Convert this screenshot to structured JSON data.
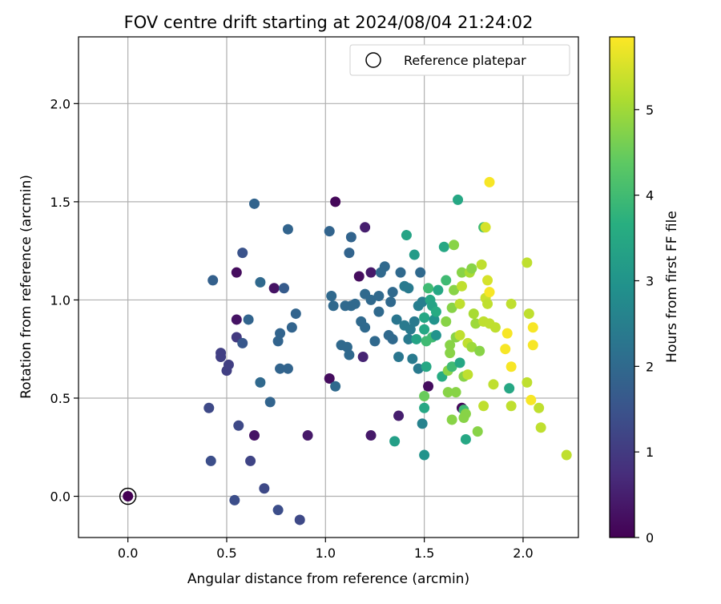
{
  "chart_data": {
    "type": "scatter",
    "title": "FOV centre drift starting at 2024/08/04 21:24:02",
    "xlabel": "Angular distance from reference (arcmin)",
    "ylabel": "Rotation from reference (arcmin)",
    "xlim": [
      -0.25,
      2.28
    ],
    "ylim": [
      -0.21,
      2.34
    ],
    "x_ticks": [
      "0.0",
      "0.5",
      "1.0",
      "1.5",
      "2.0"
    ],
    "y_ticks": [
      "0.0",
      "0.5",
      "1.0",
      "1.5",
      "2.0"
    ],
    "grid": true,
    "legend": {
      "placement": "top-right",
      "entries": [
        "Reference platepar"
      ]
    },
    "reference_point": {
      "x": 0.0,
      "y": 0.0
    },
    "colorbar": {
      "label": "Hours from first FF file",
      "range": [
        0,
        5.85
      ],
      "ticks": [
        "0",
        "1",
        "2",
        "3",
        "4",
        "5"
      ],
      "colormap": "viridis"
    },
    "points": [
      [
        0.0,
        0.0,
        0.0
      ],
      [
        0.41,
        0.45,
        1.3
      ],
      [
        0.42,
        0.18,
        1.4
      ],
      [
        0.43,
        1.1,
        1.8
      ],
      [
        0.47,
        0.73,
        1.1
      ],
      [
        0.47,
        0.71,
        1.1
      ],
      [
        0.5,
        0.64,
        1.1
      ],
      [
        0.51,
        0.67,
        1.1
      ],
      [
        0.54,
        -0.02,
        1.4
      ],
      [
        0.55,
        1.14,
        0.2
      ],
      [
        0.55,
        0.9,
        0.3
      ],
      [
        0.55,
        0.81,
        1.0
      ],
      [
        0.56,
        0.36,
        1.3
      ],
      [
        0.58,
        0.78,
        1.6
      ],
      [
        0.58,
        1.24,
        1.5
      ],
      [
        0.61,
        0.9,
        1.9
      ],
      [
        0.62,
        0.18,
        1.2
      ],
      [
        0.64,
        1.49,
        1.9
      ],
      [
        0.64,
        0.31,
        0.3
      ],
      [
        0.67,
        1.09,
        2.0
      ],
      [
        0.67,
        0.58,
        2.0
      ],
      [
        0.69,
        0.04,
        1.3
      ],
      [
        0.72,
        0.48,
        1.9
      ],
      [
        0.74,
        1.06,
        0.3
      ],
      [
        0.76,
        -0.07,
        1.4
      ],
      [
        0.76,
        0.79,
        1.9
      ],
      [
        0.77,
        0.65,
        1.9
      ],
      [
        0.77,
        0.83,
        1.9
      ],
      [
        0.79,
        1.06,
        1.7
      ],
      [
        0.81,
        0.65,
        1.9
      ],
      [
        0.81,
        1.36,
        1.9
      ],
      [
        0.83,
        0.86,
        1.9
      ],
      [
        0.85,
        0.93,
        1.9
      ],
      [
        0.87,
        -0.12,
        1.3
      ],
      [
        0.91,
        0.31,
        0.4
      ],
      [
        1.02,
        1.35,
        1.9
      ],
      [
        1.02,
        0.6,
        0.2
      ],
      [
        1.03,
        1.02,
        2.0
      ],
      [
        1.04,
        0.97,
        2.0
      ],
      [
        1.05,
        1.5,
        0.1
      ],
      [
        1.05,
        0.56,
        2.0
      ],
      [
        1.08,
        0.77,
        2.0
      ],
      [
        1.1,
        0.97,
        2.0
      ],
      [
        1.11,
        0.76,
        2.0
      ],
      [
        1.12,
        0.72,
        2.0
      ],
      [
        1.13,
        1.32,
        1.9
      ],
      [
        1.12,
        1.24,
        1.9
      ],
      [
        1.13,
        0.97,
        2.0
      ],
      [
        1.15,
        0.98,
        2.0
      ],
      [
        1.17,
        1.12,
        0.2
      ],
      [
        1.18,
        0.89,
        2.0
      ],
      [
        1.19,
        0.71,
        0.6
      ],
      [
        1.2,
        1.03,
        2.0
      ],
      [
        1.2,
        0.86,
        2.0
      ],
      [
        1.2,
        1.37,
        0.5
      ],
      [
        1.23,
        0.31,
        0.4
      ],
      [
        1.23,
        1.14,
        0.4
      ],
      [
        1.23,
        1.0,
        2.0
      ],
      [
        1.25,
        0.79,
        2.0
      ],
      [
        1.27,
        0.94,
        2.0
      ],
      [
        1.27,
        1.02,
        2.0
      ],
      [
        1.28,
        1.14,
        2.0
      ],
      [
        1.3,
        1.17,
        2.0
      ],
      [
        1.32,
        0.82,
        2.0
      ],
      [
        1.33,
        0.99,
        2.0
      ],
      [
        1.34,
        0.8,
        2.0
      ],
      [
        1.34,
        1.04,
        2.0
      ],
      [
        1.35,
        0.28,
        3.3
      ],
      [
        1.36,
        0.9,
        2.3
      ],
      [
        1.37,
        0.71,
        2.3
      ],
      [
        1.37,
        0.41,
        0.5
      ],
      [
        1.38,
        1.14,
        2.0
      ],
      [
        1.4,
        0.87,
        2.4
      ],
      [
        1.4,
        1.07,
        2.4
      ],
      [
        1.41,
        1.33,
        3.4
      ],
      [
        1.42,
        0.8,
        2.4
      ],
      [
        1.42,
        1.06,
        2.4
      ],
      [
        1.43,
        0.85,
        2.4
      ],
      [
        1.44,
        0.7,
        2.4
      ],
      [
        1.45,
        0.89,
        2.4
      ],
      [
        1.45,
        1.23,
        3.2
      ],
      [
        1.46,
        0.8,
        3.4
      ],
      [
        1.47,
        0.65,
        2.4
      ],
      [
        1.47,
        0.97,
        2.5
      ],
      [
        1.48,
        1.14,
        2.0
      ],
      [
        1.49,
        0.99,
        2.5
      ],
      [
        1.49,
        0.37,
        2.6
      ],
      [
        1.5,
        0.85,
        3.5
      ],
      [
        1.5,
        0.91,
        3.5
      ],
      [
        1.51,
        0.66,
        3.5
      ],
      [
        1.5,
        0.51,
        4.5
      ],
      [
        1.5,
        0.45,
        3.5
      ],
      [
        1.5,
        0.21,
        3.0
      ],
      [
        1.51,
        0.79,
        4.0
      ],
      [
        1.52,
        0.56,
        0.2
      ],
      [
        1.52,
        1.06,
        4.0
      ],
      [
        1.53,
        1.0,
        3.5
      ],
      [
        1.54,
        0.81,
        4.0
      ],
      [
        1.54,
        0.97,
        3.4
      ],
      [
        1.55,
        0.9,
        3.0
      ],
      [
        1.56,
        0.82,
        3.0
      ],
      [
        1.56,
        0.94,
        3.6
      ],
      [
        1.57,
        1.05,
        3.5
      ],
      [
        1.59,
        0.61,
        3.6
      ],
      [
        1.6,
        1.27,
        3.5
      ],
      [
        1.61,
        1.1,
        4.0
      ],
      [
        1.61,
        0.89,
        4.8
      ],
      [
        1.62,
        0.64,
        4.8
      ],
      [
        1.62,
        0.53,
        4.8
      ],
      [
        1.63,
        0.77,
        4.8
      ],
      [
        1.63,
        0.73,
        4.8
      ],
      [
        1.64,
        0.39,
        4.8
      ],
      [
        1.64,
        0.66,
        4.0
      ],
      [
        1.64,
        0.96,
        4.8
      ],
      [
        1.65,
        1.05,
        4.8
      ],
      [
        1.65,
        1.28,
        4.8
      ],
      [
        1.66,
        0.53,
        4.8
      ],
      [
        1.66,
        0.81,
        4.8
      ],
      [
        1.67,
        1.51,
        3.5
      ],
      [
        1.68,
        0.68,
        3.5
      ],
      [
        1.68,
        0.98,
        5.3
      ],
      [
        1.68,
        0.82,
        5.3
      ],
      [
        1.69,
        0.45,
        0.1
      ],
      [
        1.69,
        1.07,
        5.3
      ],
      [
        1.69,
        1.14,
        4.8
      ],
      [
        1.7,
        0.44,
        4.0
      ],
      [
        1.7,
        0.61,
        4.8
      ],
      [
        1.7,
        0.4,
        4.8
      ],
      [
        1.71,
        0.29,
        3.5
      ],
      [
        1.71,
        0.42,
        4.8
      ],
      [
        1.72,
        0.78,
        5.3
      ],
      [
        1.72,
        0.62,
        5.3
      ],
      [
        1.73,
        1.14,
        5.1
      ],
      [
        1.74,
        1.16,
        4.8
      ],
      [
        1.74,
        0.76,
        5.0
      ],
      [
        1.75,
        0.93,
        5.1
      ],
      [
        1.76,
        0.88,
        5.0
      ],
      [
        1.77,
        0.33,
        4.8
      ],
      [
        1.78,
        0.74,
        4.8
      ],
      [
        1.79,
        1.18,
        5.3
      ],
      [
        1.8,
        0.46,
        5.3
      ],
      [
        1.8,
        1.37,
        4.0
      ],
      [
        1.8,
        0.89,
        5.3
      ],
      [
        1.81,
        1.01,
        5.4
      ],
      [
        1.81,
        1.37,
        5.5
      ],
      [
        1.82,
        1.1,
        5.5
      ],
      [
        1.82,
        0.98,
        5.3
      ],
      [
        1.83,
        1.6,
        5.8
      ],
      [
        1.83,
        0.88,
        5.3
      ],
      [
        1.83,
        1.04,
        5.8
      ],
      [
        1.85,
        0.57,
        5.3
      ],
      [
        1.86,
        0.86,
        5.3
      ],
      [
        1.91,
        0.75,
        5.8
      ],
      [
        1.92,
        0.83,
        5.8
      ],
      [
        1.93,
        0.55,
        3.5
      ],
      [
        1.94,
        0.98,
        5.3
      ],
      [
        1.94,
        0.46,
        5.3
      ],
      [
        1.94,
        0.66,
        5.8
      ],
      [
        2.02,
        0.58,
        5.3
      ],
      [
        2.02,
        1.19,
        5.3
      ],
      [
        2.03,
        0.93,
        5.3
      ],
      [
        2.04,
        0.49,
        5.8
      ],
      [
        2.05,
        0.77,
        5.8
      ],
      [
        2.05,
        0.86,
        5.8
      ],
      [
        2.08,
        0.45,
        5.3
      ],
      [
        2.09,
        0.35,
        5.3
      ],
      [
        2.22,
        0.21,
        5.3
      ]
    ]
  }
}
